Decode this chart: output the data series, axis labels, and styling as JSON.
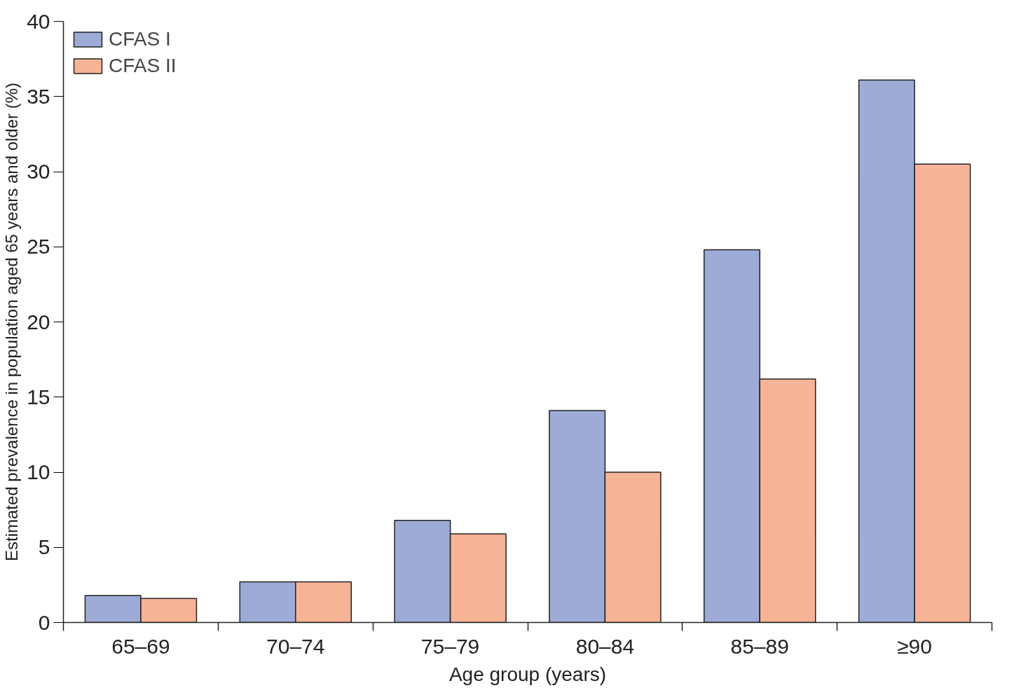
{
  "chart_data": {
    "type": "bar",
    "xlabel": "Age group (years)",
    "ylabel": "Estimated prevalence in population aged 65 years and older (%)",
    "categories": [
      "65–69",
      "70–74",
      "75–79",
      "80–84",
      "85–89",
      "≥90"
    ],
    "series": [
      {
        "name": "CFAS I",
        "color": "#9dabd6",
        "values": [
          1.8,
          2.7,
          6.8,
          14.1,
          24.8,
          36.1
        ]
      },
      {
        "name": "CFAS II",
        "color": "#f7b396",
        "values": [
          1.6,
          2.7,
          5.9,
          10.0,
          16.2,
          30.5
        ]
      }
    ],
    "ylim": [
      0,
      40
    ],
    "yticks": [
      0,
      5,
      10,
      15,
      20,
      25,
      30,
      35,
      40
    ],
    "grid": false,
    "legend": "top left"
  }
}
